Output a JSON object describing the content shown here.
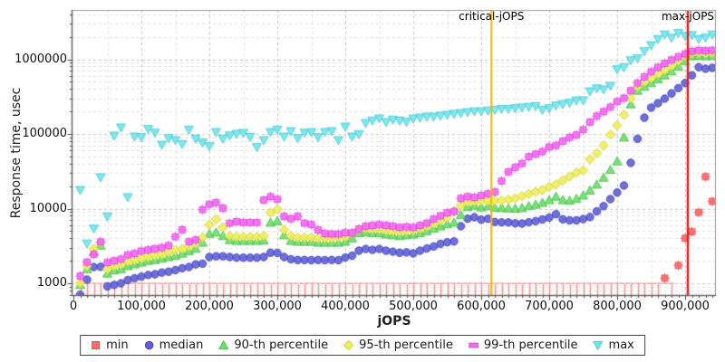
{
  "chart_data": {
    "type": "scatter",
    "title": "",
    "xlabel": "jOPS",
    "ylabel": "Response time, usec",
    "x_axis": {
      "min": 0,
      "max": 946000,
      "grid_minor_step": 50000,
      "tick_minor_step": 10000,
      "ticks": [
        {
          "v": 0,
          "label": "0"
        },
        {
          "v": 100000,
          "label": "100,000"
        },
        {
          "v": 200000,
          "label": "200,000"
        },
        {
          "v": 300000,
          "label": "300,000"
        },
        {
          "v": 400000,
          "label": "400,000"
        },
        {
          "v": 500000,
          "label": "500,000"
        },
        {
          "v": 600000,
          "label": "600,000"
        },
        {
          "v": 700000,
          "label": "700,000"
        },
        {
          "v": 800000,
          "label": "800,000"
        },
        {
          "v": 900000,
          "label": "900,000"
        }
      ]
    },
    "y_axis": {
      "scale": "log",
      "min": 680,
      "max": 4500000,
      "grid": true,
      "ticks": [
        {
          "v": 1000,
          "label": "1000"
        },
        {
          "v": 10000,
          "label": "10000"
        },
        {
          "v": 100000,
          "label": "100000"
        },
        {
          "v": 1000000,
          "label": "1000000"
        }
      ]
    },
    "vlines": [
      {
        "label": "critical-jOPS",
        "x": 615000,
        "color": "#f2b705"
      },
      {
        "label": "max-jOPS",
        "x": 904000,
        "color": "#e82020"
      }
    ],
    "legend": {
      "position": "bottom",
      "entries": [
        "min",
        "median",
        "90-th percentile",
        "95-th percentile",
        "99-th percentile",
        "max"
      ]
    },
    "x": [
      10000,
      20000,
      30000,
      40000,
      50000,
      60000,
      70000,
      80000,
      90000,
      100000,
      110000,
      120000,
      130000,
      140000,
      150000,
      160000,
      170000,
      180000,
      190000,
      200000,
      210000,
      220000,
      230000,
      240000,
      250000,
      260000,
      270000,
      280000,
      290000,
      300000,
      310000,
      320000,
      330000,
      340000,
      350000,
      360000,
      370000,
      380000,
      390000,
      400000,
      410000,
      420000,
      430000,
      440000,
      450000,
      460000,
      470000,
      480000,
      490000,
      500000,
      510000,
      520000,
      530000,
      540000,
      550000,
      560000,
      570000,
      580000,
      590000,
      600000,
      610000,
      620000,
      630000,
      640000,
      650000,
      660000,
      670000,
      680000,
      690000,
      700000,
      710000,
      720000,
      730000,
      740000,
      750000,
      760000,
      770000,
      780000,
      790000,
      800000,
      810000,
      820000,
      830000,
      840000,
      850000,
      860000,
      870000,
      880000,
      890000,
      900000,
      910000,
      920000,
      930000,
      940000
    ],
    "series": [
      {
        "name": "min",
        "marker": "square",
        "render": "comb",
        "color": "#fb6b6b",
        "stroke": "#e85050",
        "values": [
          760,
          740,
          750,
          730,
          760,
          750,
          740,
          760,
          750,
          730,
          750,
          760,
          740,
          750,
          730,
          760,
          750,
          740,
          730,
          750,
          760,
          740,
          750,
          730,
          760,
          750,
          740,
          760,
          730,
          750,
          740,
          760,
          750,
          730,
          760,
          740,
          750,
          730,
          760,
          750,
          740,
          760,
          730,
          750,
          760,
          740,
          750,
          730,
          760,
          750,
          740,
          760,
          730,
          750,
          740,
          760,
          750,
          730,
          760,
          740,
          750,
          730,
          760,
          750,
          740,
          760,
          730,
          750,
          760,
          740,
          750,
          730,
          760,
          750,
          740,
          760,
          730,
          750,
          740,
          760,
          750,
          730,
          700,
          700,
          720,
          760,
          1170,
          720,
          1730,
          4000,
          4900,
          8900,
          26700,
          12500
        ]
      },
      {
        "name": "median",
        "marker": "circle",
        "color": "#5f5fd8",
        "stroke": "#4646c2",
        "values": [
          700,
          1120,
          1650,
          1660,
          910,
          950,
          1000,
          1105,
          1170,
          1225,
          1290,
          1320,
          1390,
          1430,
          1500,
          1590,
          1650,
          1790,
          1830,
          2250,
          2300,
          2300,
          2250,
          2200,
          2200,
          2200,
          2200,
          2250,
          2560,
          2550,
          2250,
          2100,
          2050,
          2050,
          2040,
          2050,
          2040,
          2050,
          2040,
          2210,
          2340,
          2730,
          2880,
          2800,
          2880,
          2730,
          2650,
          2560,
          2590,
          2510,
          2730,
          2920,
          3110,
          3370,
          3540,
          3640,
          5810,
          7320,
          7670,
          7100,
          7320,
          6620,
          6530,
          6530,
          6350,
          6300,
          6560,
          6790,
          7140,
          7570,
          8410,
          7190,
          6960,
          6960,
          7240,
          7700,
          9200,
          10800,
          13400,
          16400,
          20400,
          41000,
          86000,
          165000,
          225000,
          258000,
          297000,
          349000,
          411000,
          481000,
          609000,
          783000,
          747000,
          768000
        ]
      },
      {
        "name": "90-th percentile",
        "marker": "triangle-up",
        "color": "#6ade6a",
        "stroke": "#4cc44c",
        "values": [
          950,
          1550,
          2630,
          3200,
          1350,
          1500,
          1550,
          1700,
          1800,
          1900,
          2000,
          2050,
          2150,
          2250,
          2350,
          2500,
          2700,
          2900,
          3500,
          4600,
          4800,
          4300,
          3800,
          3700,
          3700,
          3700,
          3700,
          3750,
          6500,
          6800,
          4400,
          3700,
          3600,
          3600,
          3600,
          3500,
          3500,
          3500,
          3500,
          3600,
          4000,
          4700,
          4800,
          4700,
          4700,
          4500,
          4400,
          4300,
          4400,
          4500,
          4700,
          5000,
          5400,
          5800,
          6200,
          6500,
          8200,
          10500,
          11000,
          10400,
          10800,
          10300,
          10200,
          10100,
          10000,
          10200,
          10800,
          11300,
          12000,
          13000,
          14500,
          13000,
          12800,
          13500,
          15000,
          17500,
          21000,
          26000,
          33000,
          43000,
          90000,
          250000,
          380000,
          430000,
          480000,
          540000,
          610000,
          690000,
          800000,
          950000,
          1100000,
          1120000,
          1100000,
          1120000
        ]
      },
      {
        "name": "95-th percentile",
        "marker": "diamond",
        "color": "#f0ef59",
        "stroke": "#d6d33c",
        "values": [
          1000,
          1700,
          2900,
          3500,
          1550,
          1700,
          1800,
          1950,
          2050,
          2150,
          2250,
          2350,
          2450,
          2600,
          2750,
          2900,
          3100,
          3400,
          4100,
          6090,
          7200,
          5600,
          4300,
          4200,
          4200,
          4200,
          4200,
          4300,
          8800,
          9800,
          5200,
          4300,
          4100,
          4100,
          4100,
          4000,
          4000,
          4000,
          4100,
          4200,
          4700,
          5300,
          5400,
          5300,
          5300,
          5100,
          5000,
          4900,
          5000,
          5100,
          5400,
          5800,
          6300,
          6900,
          7600,
          9200,
          11000,
          12200,
          12500,
          12600,
          12700,
          12800,
          12800,
          13200,
          13700,
          14700,
          15800,
          16700,
          17700,
          19600,
          21000,
          23800,
          26900,
          30400,
          32500,
          45700,
          55000,
          70000,
          98000,
          130000,
          180000,
          300000,
          430000,
          500000,
          560000,
          640000,
          720000,
          820000,
          950000,
          1100000,
          1200000,
          1220000,
          1200000,
          1220000
        ]
      },
      {
        "name": "99-th percentile",
        "marker": "square-plus",
        "color": "#f969f9",
        "stroke": "#df4fdf",
        "values": [
          1250,
          1920,
          2440,
          3590,
          1900,
          2000,
          2100,
          2400,
          2500,
          2700,
          2800,
          2900,
          3000,
          3200,
          4200,
          5200,
          3600,
          3800,
          9680,
          11420,
          12000,
          10150,
          6380,
          6680,
          6500,
          6500,
          6500,
          13000,
          14450,
          13300,
          7850,
          7320,
          7850,
          6380,
          6100,
          5180,
          4640,
          4570,
          4570,
          4740,
          4740,
          5300,
          5810,
          5950,
          6090,
          5950,
          5810,
          5590,
          5710,
          5590,
          5950,
          6380,
          7240,
          7990,
          8800,
          9150,
          13700,
          14450,
          14100,
          15000,
          15800,
          16700,
          23400,
          31000,
          35600,
          40200,
          49600,
          53700,
          57900,
          66900,
          70000,
          80000,
          90000,
          97000,
          114000,
          144000,
          173000,
          199000,
          229000,
          271000,
          302000,
          380000,
          480000,
          580000,
          680000,
          780000,
          880000,
          980000,
          1080000,
          1180000,
          1280000,
          1320000,
          1300000,
          1320000
        ]
      },
      {
        "name": "max",
        "marker": "triangle-down",
        "color": "#6fe6ec",
        "stroke": "#4fcdd6",
        "values": [
          17700,
          3390,
          5380,
          26200,
          7800,
          94600,
          121600,
          14200,
          92000,
          90300,
          116000,
          103700,
          71500,
          87800,
          82300,
          72900,
          114000,
          86000,
          76300,
          68300,
          105700,
          86000,
          95000,
          100000,
          102800,
          91100,
          66400,
          82300,
          105700,
          114000,
          92000,
          108600,
          87800,
          103700,
          105700,
          90300,
          105700,
          108600,
          82300,
          125000,
          92000,
          99100,
          139700,
          150700,
          160800,
          143800,
          155000,
          150000,
          145000,
          160000,
          165000,
          170000,
          170000,
          175000,
          180000,
          185000,
          190000,
          195000,
          200000,
          200000,
          205000,
          210000,
          215000,
          215000,
          220000,
          225000,
          230000,
          235000,
          210000,
          220000,
          240000,
          250000,
          260000,
          280000,
          281000,
          371000,
          407000,
          393000,
          439000,
          731000,
          780000,
          965000,
          1030000,
          1280000,
          1540000,
          1860000,
          2140000,
          1940000,
          2240000,
          2050000,
          2100000,
          1860000,
          1940000,
          2140000
        ]
      }
    ]
  }
}
